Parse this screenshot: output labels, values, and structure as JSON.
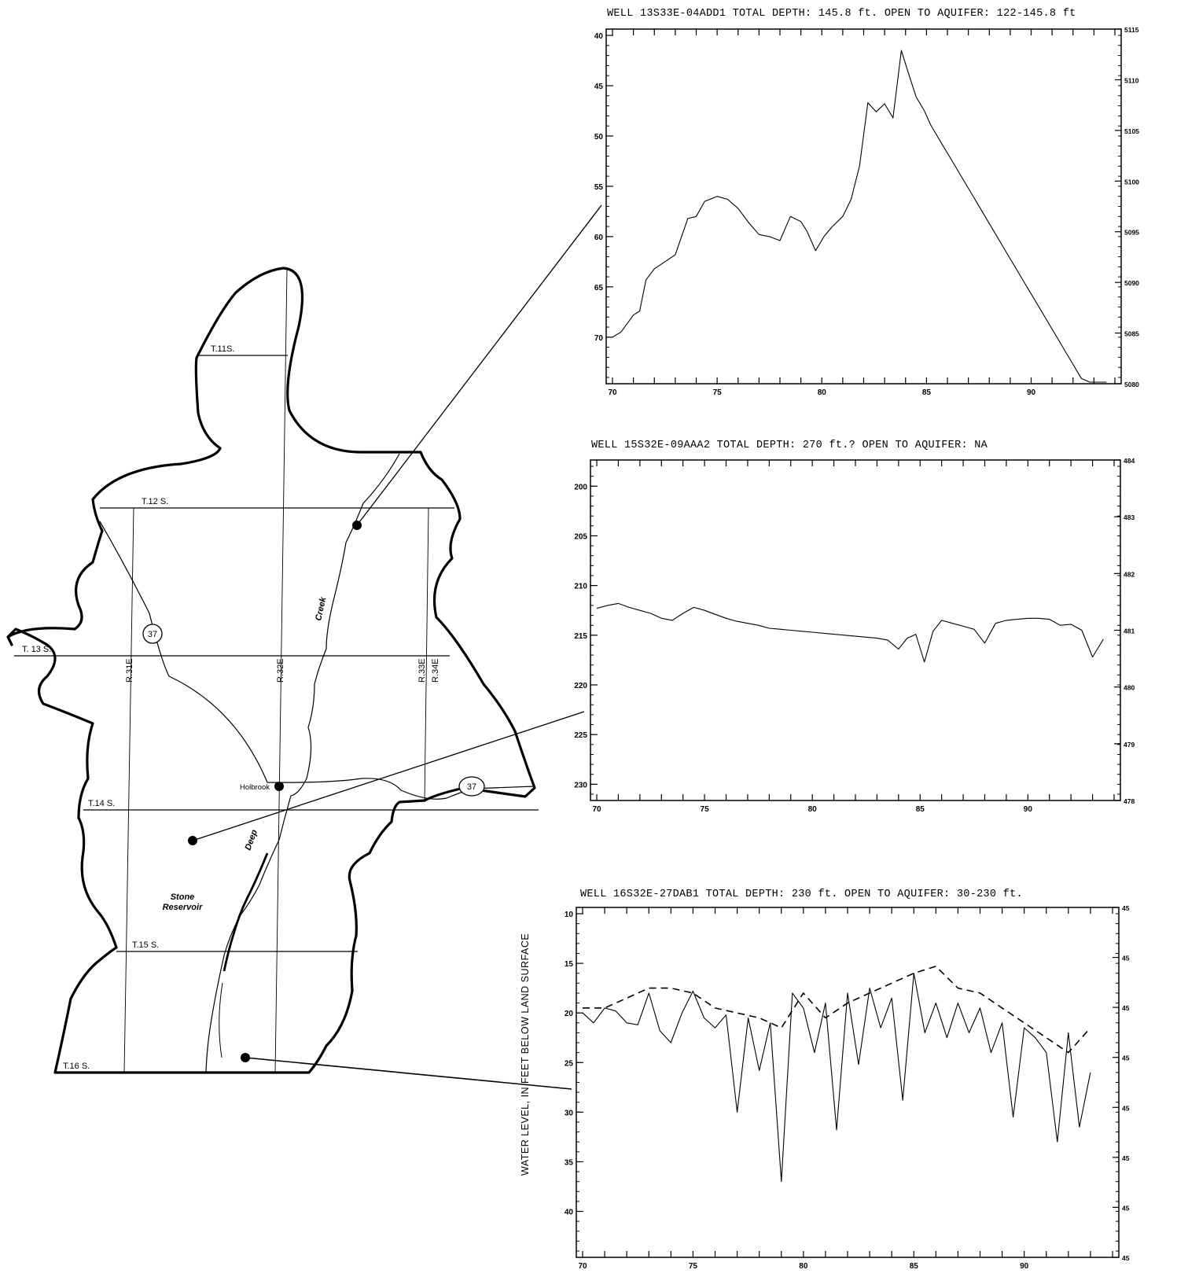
{
  "map": {
    "township_labels": [
      "T.11S.",
      "T.12 S.",
      "T. 13 S.",
      "T.14 S.",
      "T.15 S.",
      "T.16 S."
    ],
    "range_labels": [
      "R.31E",
      "R.32E",
      "R.33E",
      "R.34E"
    ],
    "route_number": "37",
    "place_holbrook": "Holbrook",
    "creek_word_1": "Creek",
    "creek_word_2": "Deep",
    "reservoir_line_1": "Stone",
    "reservoir_line_2": "Reservoir"
  },
  "chart_data": [
    {
      "type": "line",
      "title": "WELL 13S33E-04ADD1   TOTAL DEPTH: 145.8 ft. OPEN TO AQUIFER: 122-145.8 ft",
      "xlim": [
        70,
        94
      ],
      "x_ticks": [
        "70",
        "75",
        "80",
        "85",
        "90"
      ],
      "ylim": [
        40,
        74
      ],
      "y_ticks": [
        "40",
        "45",
        "50",
        "55",
        "60",
        "65",
        "70"
      ],
      "right_ticks": [
        "5115",
        "5110",
        "5105",
        "5100",
        "5095",
        "5090",
        "5085",
        "5080"
      ],
      "inverted_y": true,
      "series": [
        {
          "style": "solid",
          "x": [
            70.0,
            70.4,
            71.0,
            71.3,
            71.6,
            72.0,
            72.5,
            73.0,
            73.6,
            74.0,
            74.4,
            75.0,
            75.5,
            76.0,
            76.5,
            77.0,
            77.5,
            78.0,
            78.5,
            79.0,
            79.3,
            79.7,
            80.1,
            80.5,
            81.0,
            81.4,
            81.8,
            82.2,
            82.6,
            83.0,
            83.4,
            83.8,
            84.1,
            84.5,
            84.9,
            85.2,
            85.6,
            86.0,
            86.4,
            86.8,
            87.2,
            87.6,
            88.0,
            88.4,
            88.8,
            89.2,
            89.6,
            90.0,
            90.4,
            90.8,
            91.2,
            91.6,
            92.0,
            92.4,
            92.8,
            93.2,
            93.6
          ],
          "y": [
            70.0,
            69.5,
            67.8,
            67.4,
            64.3,
            63.2,
            62.5,
            61.8,
            58.2,
            58.0,
            56.5,
            56.0,
            56.3,
            57.2,
            58.6,
            59.8,
            60.0,
            60.4,
            58.0,
            58.5,
            59.5,
            61.4,
            60.0,
            59.0,
            58.0,
            56.3,
            53.0,
            46.7,
            47.6,
            46.8,
            48.2,
            41.5,
            43.5,
            46.1,
            47.5,
            48.9,
            50.3,
            51.7,
            53.1,
            54.5,
            55.9,
            57.3,
            58.7,
            60.1,
            61.5,
            62.9,
            64.3,
            65.7,
            67.1,
            68.5,
            69.9,
            71.3,
            72.7,
            74.1,
            75.5,
            76.9,
            78.3
          ]
        }
      ]
    },
    {
      "type": "line",
      "title": "WELL 15S32E-09AAA2   TOTAL DEPTH: 270  ft.?   OPEN TO AQUIFER: NA",
      "xlim": [
        70,
        94
      ],
      "x_ticks": [
        "70",
        "75",
        "80",
        "85",
        "90"
      ],
      "ylim": [
        198,
        231
      ],
      "y_ticks": [
        "200",
        "205",
        "210",
        "215",
        "220",
        "225",
        "230"
      ],
      "right_ticks": [
        "484",
        "483",
        "482",
        "481",
        "480",
        "479",
        "478"
      ],
      "inverted_y": true,
      "series": [
        {
          "style": "solid",
          "x": [
            70.0,
            70.5,
            71.0,
            71.5,
            72.0,
            72.5,
            73.0,
            73.5,
            74.0,
            74.5,
            75.0,
            75.5,
            76.0,
            76.5,
            77.0,
            77.5,
            78.0,
            78.5,
            79.0,
            79.5,
            80.0,
            80.5,
            81.0,
            81.5,
            82.0,
            82.5,
            83.0,
            83.5,
            84.0,
            84.4,
            84.8,
            85.2,
            85.6,
            86.0,
            86.5,
            87.0,
            87.5,
            88.0,
            88.5,
            89.0,
            89.5,
            90.0,
            90.5,
            91.0,
            91.5,
            92.0,
            92.5,
            93.0,
            93.5
          ],
          "y": [
            212.3,
            212.0,
            211.8,
            212.2,
            212.5,
            212.8,
            213.3,
            213.5,
            212.8,
            212.2,
            212.5,
            212.9,
            213.3,
            213.6,
            213.8,
            214.0,
            214.3,
            214.4,
            214.5,
            214.6,
            214.7,
            214.8,
            214.9,
            215.0,
            215.1,
            215.2,
            215.3,
            215.5,
            216.4,
            215.3,
            214.9,
            217.7,
            214.6,
            213.5,
            213.8,
            214.1,
            214.4,
            215.8,
            213.8,
            213.5,
            213.4,
            213.3,
            213.3,
            213.4,
            214.0,
            213.9,
            214.5,
            217.2,
            215.4
          ]
        }
      ]
    },
    {
      "type": "line",
      "title": "WELL 16S32E-27DAB1   TOTAL DEPTH: 230 ft.  OPEN TO AQUIFER: 30-230 ft.",
      "xlabel": "",
      "ylabel": "WATER LEVEL, IN FEET BELOW LAND SURFACE",
      "xlim": [
        70,
        94
      ],
      "x_ticks": [
        "70",
        "75",
        "80",
        "85",
        "90"
      ],
      "ylim": [
        10,
        44
      ],
      "y_ticks": [
        "10",
        "15",
        "20",
        "25",
        "30",
        "35",
        "40"
      ],
      "right_ticks": [
        "45",
        "45",
        "45",
        "45",
        "45",
        "45",
        "45",
        "45"
      ],
      "inverted_y": true,
      "series": [
        {
          "style": "solid",
          "x": [
            70.0,
            70.5,
            71.0,
            71.5,
            72.0,
            72.5,
            73.0,
            73.5,
            74.0,
            74.5,
            75.0,
            75.5,
            76.0,
            76.5,
            77.0,
            77.5,
            78.0,
            78.5,
            79.0,
            79.5,
            80.0,
            80.5,
            81.0,
            81.5,
            82.0,
            82.5,
            83.0,
            83.5,
            84.0,
            84.5,
            85.0,
            85.5,
            86.0,
            86.5,
            87.0,
            87.5,
            88.0,
            88.5,
            89.0,
            89.5,
            90.0,
            90.5,
            91.0,
            91.5,
            92.0,
            92.5,
            93.0
          ],
          "y": [
            20.0,
            21.0,
            19.5,
            19.8,
            21.0,
            21.2,
            18.0,
            21.8,
            23.0,
            20.0,
            17.8,
            20.5,
            21.5,
            20.2,
            30.0,
            20.5,
            25.8,
            21.0,
            37.0,
            18.0,
            19.5,
            24.0,
            19.0,
            31.8,
            18.0,
            25.2,
            17.5,
            21.5,
            18.5,
            28.8,
            16.0,
            22.0,
            19.0,
            22.5,
            19.0,
            22.0,
            19.5,
            24.0,
            21.0,
            30.5,
            21.5,
            22.5,
            24.0,
            33.0,
            22.0,
            31.5,
            26.0
          ]
        },
        {
          "style": "dashed",
          "x": [
            70.0,
            71.0,
            72.0,
            73.0,
            74.0,
            75.0,
            76.0,
            77.0,
            78.0,
            79.0,
            80.0,
            81.0,
            82.0,
            83.0,
            84.0,
            85.0,
            86.0,
            87.0,
            88.0,
            89.0,
            90.0,
            91.0,
            92.0,
            93.0
          ],
          "y": [
            19.5,
            19.5,
            18.5,
            17.5,
            17.5,
            18.0,
            19.5,
            20.0,
            20.5,
            21.5,
            18.0,
            20.5,
            19.0,
            18.0,
            17.0,
            16.0,
            15.3,
            17.5,
            18.0,
            19.5,
            21.0,
            22.5,
            24.0,
            21.5
          ]
        }
      ]
    }
  ]
}
